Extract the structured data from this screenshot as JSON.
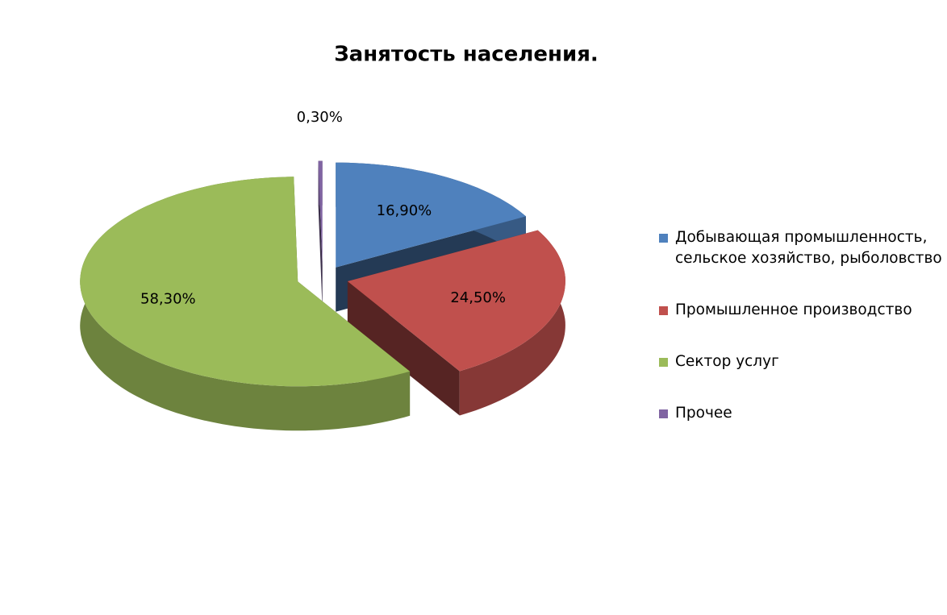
{
  "chart_data": {
    "type": "pie",
    "title": "Занятость населения.",
    "categories": [
      "Добывающая промышленность, сельское хозяйство, рыболовство",
      "Промышленное производство",
      "Сектор услуг",
      "Прочее"
    ],
    "values": [
      16.9,
      24.5,
      58.3,
      0.3
    ],
    "value_labels": [
      "16,90%",
      "24,50%",
      "58,30%",
      "0,30%"
    ],
    "colors": [
      "#4f81bd",
      "#c0504d",
      "#9bbb59",
      "#8064a2"
    ]
  }
}
